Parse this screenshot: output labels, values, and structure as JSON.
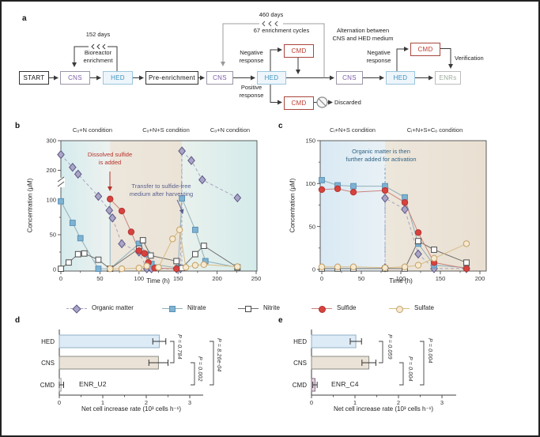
{
  "flowchart": {
    "panel_label": "a",
    "boxes": [
      {
        "id": "start",
        "text": "START",
        "style": "plain"
      },
      {
        "id": "cns1",
        "text": "CNS",
        "style": "cns"
      },
      {
        "id": "hed1",
        "text": "HED",
        "style": "hed"
      },
      {
        "id": "pre",
        "text": "Pre-enrichment",
        "style": "plain"
      },
      {
        "id": "cns2",
        "text": "CNS",
        "style": "cns"
      },
      {
        "id": "hed2",
        "text": "HED",
        "style": "hed"
      },
      {
        "id": "cmd1",
        "text": "CMD",
        "style": "cmd"
      },
      {
        "id": "cmd2",
        "text": "CMD",
        "style": "cmd"
      },
      {
        "id": "cns3",
        "text": "CNS",
        "style": "cns"
      },
      {
        "id": "hed3",
        "text": "HED",
        "style": "hed"
      },
      {
        "id": "cmd3",
        "text": "CMD",
        "style": "cmd"
      },
      {
        "id": "enrs",
        "text": "ENRs",
        "style": "enrs"
      }
    ],
    "labels": {
      "days152": "152 days",
      "bioreactor": "Bioreactor\nenrichment",
      "days460": "460 days",
      "cycles67": "67 enrichment cycles",
      "negative1": "Negative\nresponse",
      "positive1": "Positive\nresponse",
      "alternation": "Alternation between\nCNS and HED medium",
      "negative2": "Negative\nresponse",
      "verification": "Verification",
      "discarded": "Discarded"
    }
  },
  "chart_data": [
    {
      "id": "b",
      "panel_label": "b",
      "type": "line",
      "conditions": [
        "Cₒ+N condition",
        "Cₒ+N+S condition",
        "Cₒ+N condition"
      ],
      "xlabel": "Time (h)",
      "ylabel": "Concentration (μM)",
      "x_ticks": [
        0,
        50,
        100,
        150,
        200,
        250
      ],
      "y_ticks": [
        0,
        50,
        100,
        200,
        300
      ],
      "y_axis_break": [
        100,
        200
      ],
      "x_range": [
        0,
        250
      ],
      "annotations": [
        {
          "text": "Dissolved sulfide\nis added",
          "color": "#b73229"
        },
        {
          "text": "Transfer to sulfide-free\nmedium after harvesting",
          "color": "#5a6190"
        }
      ],
      "ref_lines": [
        {
          "x": 63,
          "y_top": 103,
          "style": "solid",
          "color": "#8fb6c4"
        },
        {
          "x": 155,
          "y_top": 265,
          "style": "dashed",
          "color": "#b3b3c6"
        }
      ],
      "regions": [
        {
          "x": [
            0,
            63
          ],
          "colors": [
            "#d6ebee",
            "#edf2ef"
          ]
        },
        {
          "x": [
            63,
            155
          ],
          "colors": [
            "#ece6dc",
            "#ebe3d6"
          ]
        },
        {
          "x": [
            155,
            250
          ],
          "colors": [
            "#e9f1ec",
            "#d4ebeb"
          ]
        }
      ],
      "series": [
        {
          "name": "Organic matter",
          "marker": "diamond",
          "fill": "#aaa5c6",
          "stroke": "#5e5a88",
          "line_color": "#a9a5c2",
          "dash": "4 3",
          "points": [
            [
              0,
              253
            ],
            [
              15,
              210
            ],
            [
              22,
              187
            ],
            [
              48,
              112
            ],
            [
              62,
              85
            ],
            [
              66,
              74
            ],
            [
              78,
              37
            ],
            [
              100,
              25
            ],
            [
              110,
              1
            ],
            [
              116,
              1
            ],
            [
              148,
              1
            ],
            [
              153,
              1
            ],
            [
              155,
              265
            ],
            [
              167,
              233
            ],
            [
              181,
              168
            ],
            [
              226,
              107
            ]
          ]
        },
        {
          "name": "Nitrate",
          "marker": "square",
          "fill": "#7fb3d3",
          "stroke": "#5c92b5",
          "line_color": "#8fb0ba",
          "points": [
            [
              0,
              98
            ],
            [
              15,
              67
            ],
            [
              25,
              45
            ],
            [
              48,
              1
            ],
            [
              63,
              1
            ],
            [
              100,
              37
            ],
            [
              110,
              22
            ],
            [
              116,
              8
            ],
            [
              150,
              2
            ],
            [
              155,
              105
            ],
            [
              172,
              57
            ],
            [
              185,
              12
            ],
            [
              226,
              3
            ]
          ]
        },
        {
          "name": "Nitrite",
          "marker": "open-square",
          "fill": "#ffffff",
          "stroke": "#4a4a4a",
          "line_color": "#6f6f6f",
          "points": [
            [
              0,
              1
            ],
            [
              10,
              10
            ],
            [
              22,
              22
            ],
            [
              30,
              23
            ],
            [
              48,
              14
            ],
            [
              63,
              1
            ],
            [
              100,
              30
            ],
            [
              105,
              42
            ],
            [
              115,
              20
            ],
            [
              148,
              12
            ],
            [
              155,
              2
            ],
            [
              172,
              22
            ],
            [
              183,
              34
            ],
            [
              226,
              3
            ]
          ]
        },
        {
          "name": "Sulfide",
          "marker": "circle",
          "fill": "#d8423e",
          "stroke": "#b23632",
          "line_color": "#c9837c",
          "points": [
            [
              63,
              103
            ],
            [
              78,
              84
            ],
            [
              90,
              54
            ],
            [
              100,
              27
            ],
            [
              107,
              23
            ],
            [
              112,
              10
            ],
            [
              120,
              2
            ],
            [
              148,
              1
            ]
          ]
        },
        {
          "name": "Sulfate",
          "marker": "open-circle",
          "fill": "#f6e9cf",
          "stroke": "#c3a068",
          "line_color": "#d9bc82",
          "points": [
            [
              63,
              1
            ],
            [
              78,
              1
            ],
            [
              100,
              2
            ],
            [
              110,
              5
            ],
            [
              125,
              3
            ],
            [
              143,
              44
            ],
            [
              152,
              57
            ],
            [
              160,
              3
            ],
            [
              172,
              6
            ],
            [
              183,
              7
            ],
            [
              226,
              4
            ]
          ]
        }
      ]
    },
    {
      "id": "c",
      "panel_label": "c",
      "type": "line",
      "conditions": [
        "Cᵢ+N+S condition",
        "Cᵢ+N+S+Cₒ condition"
      ],
      "xlabel": "Time (h)",
      "ylabel": "Concentration (μM)",
      "x_ticks": [
        0,
        50,
        100,
        150,
        200
      ],
      "y_ticks": [
        0,
        50,
        100,
        150
      ],
      "x_range": [
        0,
        200
      ],
      "annotations": [
        {
          "text": "Organic matter is then\nfurther added for activation",
          "color": "#2f6386"
        }
      ],
      "ref_lines": [
        {
          "x": 80,
          "y_top": 121,
          "style": "dashed",
          "color": "#6f9fc0"
        }
      ],
      "regions": [
        {
          "x": [
            0,
            80
          ],
          "colors": [
            "#d9e9f4",
            "#e9f1f5"
          ]
        },
        {
          "x": [
            80,
            208
          ],
          "colors": [
            "#ede6db",
            "#e9e0d2"
          ]
        }
      ],
      "series": [
        {
          "name": "Organic matter",
          "marker": "diamond",
          "fill": "#aaa5c6",
          "stroke": "#5e5a88",
          "line_color": "#a9a5c2",
          "dash": "4 3",
          "points": [
            [
              80,
              2
            ],
            [
              80,
              83
            ],
            [
              105,
              70
            ],
            [
              122,
              18
            ],
            [
              142,
              1
            ],
            [
              183,
              1
            ]
          ]
        },
        {
          "name": "Nitrate",
          "marker": "square",
          "fill": "#7fb3d3",
          "stroke": "#5c92b5",
          "line_color": "#8fb0ba",
          "points": [
            [
              0,
              104
            ],
            [
              20,
              98
            ],
            [
              40,
              97
            ],
            [
              80,
              97
            ],
            [
              105,
              84
            ],
            [
              122,
              30
            ],
            [
              142,
              5
            ],
            [
              183,
              2
            ]
          ]
        },
        {
          "name": "Nitrite",
          "marker": "open-square",
          "fill": "#ffffff",
          "stroke": "#4a4a4a",
          "line_color": "#6f6f6f",
          "points": [
            [
              0,
              1
            ],
            [
              20,
              1
            ],
            [
              40,
              1
            ],
            [
              80,
              1
            ],
            [
              105,
              1
            ],
            [
              122,
              33
            ],
            [
              142,
              23
            ],
            [
              183,
              8
            ]
          ]
        },
        {
          "name": "Sulfide",
          "marker": "circle",
          "fill": "#d8423e",
          "stroke": "#b23632",
          "line_color": "#c9837c",
          "points": [
            [
              0,
              93
            ],
            [
              20,
              94
            ],
            [
              40,
              90
            ],
            [
              80,
              92
            ],
            [
              105,
              78
            ],
            [
              122,
              43
            ],
            [
              142,
              8
            ],
            [
              183,
              1
            ]
          ]
        },
        {
          "name": "Sulfate",
          "marker": "open-circle",
          "fill": "#f6e9cf",
          "stroke": "#c3a068",
          "line_color": "#d9bc82",
          "points": [
            [
              0,
              3
            ],
            [
              20,
              3
            ],
            [
              40,
              3
            ],
            [
              80,
              2
            ],
            [
              105,
              3
            ],
            [
              122,
              5
            ],
            [
              142,
              13
            ],
            [
              183,
              30
            ]
          ]
        }
      ]
    },
    {
      "id": "d",
      "panel_label": "d",
      "type": "bar",
      "sample": "ENR_U2",
      "categories": [
        "HED",
        "CNS",
        "CMD"
      ],
      "values": [
        2.3,
        2.28,
        0.04
      ],
      "errors": [
        0.15,
        0.22,
        0.06
      ],
      "bar_fills": [
        "#ddebf6",
        "#eae2d6",
        "#ffffff"
      ],
      "bar_strokes": [
        "#8fb0c6",
        "#8a8a84",
        "#9a9a9a"
      ],
      "xlabel": "Net cell increase rate (10³ cells h⁻¹)",
      "x_ticks": [
        0,
        1,
        2,
        3
      ],
      "p_values": [
        "P = 0.784",
        "P = 0.002",
        "P = 8.26e-04"
      ]
    },
    {
      "id": "e",
      "panel_label": "e",
      "type": "bar",
      "sample": "ENR_C4",
      "categories": [
        "HED",
        "CNS",
        "CMD"
      ],
      "values": [
        1.02,
        1.32,
        0.08
      ],
      "errors": [
        0.13,
        0.16,
        0.05
      ],
      "bar_fills": [
        "#ddebf6",
        "#eae2d6",
        "#e9d6e4"
      ],
      "bar_strokes": [
        "#8fb0c6",
        "#8a8a84",
        "#7d6a7a"
      ],
      "xlabel": "Net cell increase rate (10³ cells h⁻¹)",
      "x_ticks": [
        0,
        1,
        2,
        3
      ],
      "p_values": [
        "P = 0.059",
        "P = 0.004",
        "P = 0.004"
      ]
    }
  ]
}
